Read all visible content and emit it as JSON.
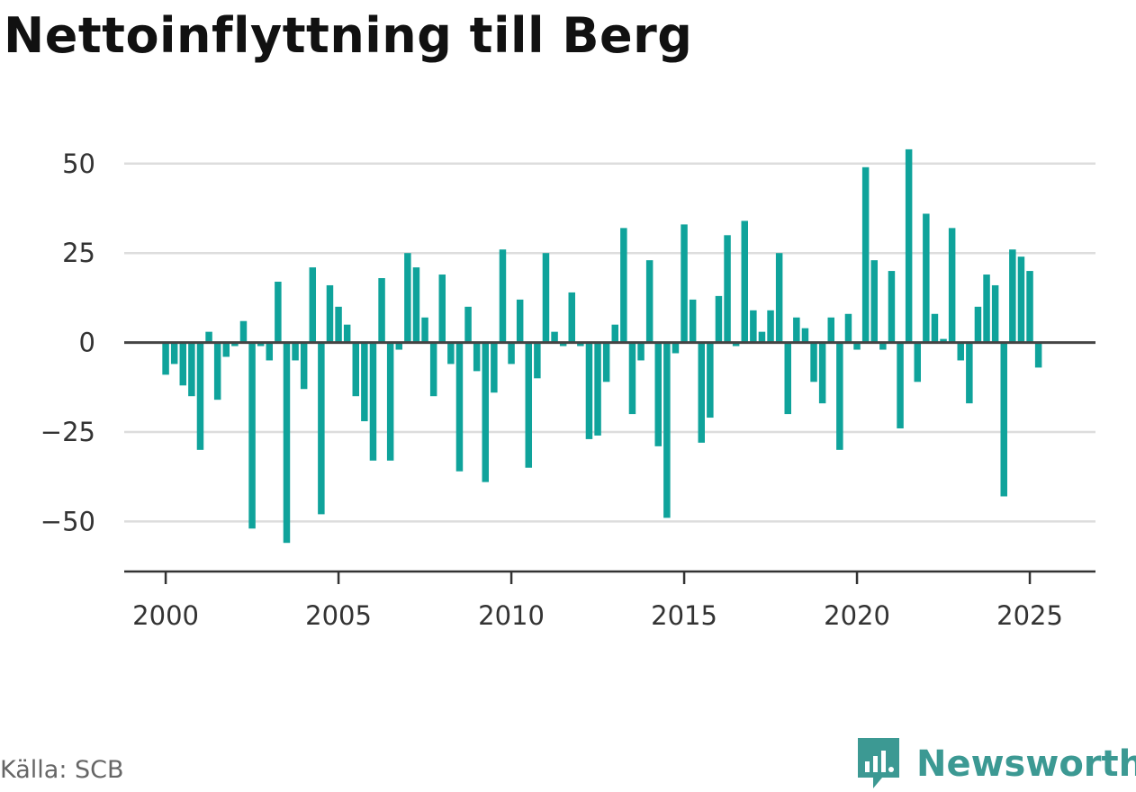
{
  "chart_data": {
    "type": "bar",
    "title": "Nettoinflyttning till Berg",
    "xlabel": "",
    "ylabel": "",
    "x_start": 2000,
    "x_step": 0.25,
    "xlim": [
      1998.8,
      2026.9
    ],
    "ylim": [
      -64,
      58
    ],
    "xticks": [
      2000,
      2005,
      2010,
      2015,
      2020,
      2025
    ],
    "yticks": [
      -50,
      -25,
      0,
      25,
      50
    ],
    "ytick_labels": [
      "−50",
      "−25",
      "0",
      "25",
      "50"
    ],
    "grid": true,
    "bar_color": "#0fa39b",
    "values": [
      -9,
      -6,
      -12,
      -15,
      -30,
      3,
      -16,
      -4,
      -1,
      6,
      -52,
      -1,
      -5,
      17,
      -56,
      -5,
      -13,
      21,
      -48,
      16,
      10,
      5,
      -15,
      -22,
      -33,
      18,
      -33,
      -2,
      25,
      21,
      7,
      -15,
      19,
      -6,
      -36,
      10,
      -8,
      -39,
      -14,
      26,
      -6,
      12,
      -35,
      -10,
      25,
      3,
      -1,
      14,
      -1,
      -27,
      -26,
      -11,
      5,
      32,
      -20,
      -5,
      23,
      -29,
      -49,
      -3,
      33,
      12,
      -28,
      -21,
      13,
      30,
      -1,
      34,
      9,
      3,
      9,
      25,
      -20,
      7,
      4,
      -11,
      -17,
      7,
      -30,
      8,
      -2,
      49,
      23,
      -2,
      20,
      -24,
      54,
      -11,
      36,
      8,
      1,
      32,
      -5,
      -17,
      10,
      19,
      16,
      -43,
      26,
      24,
      20,
      -7
    ]
  },
  "footer": {
    "source": "Källa: SCB",
    "brand_name": "Newsworthy",
    "brand_color": "#3c9993",
    "brand_icon": "bar-chart-speech-bubble-icon"
  }
}
